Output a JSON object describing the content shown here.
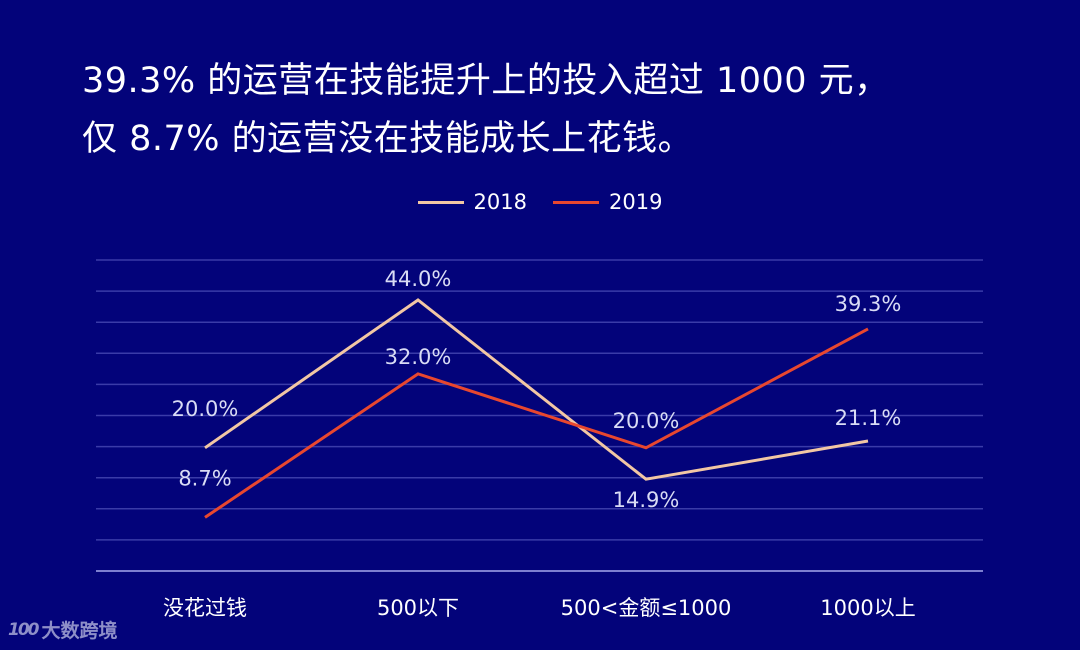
{
  "title": {
    "line1": "39.3% 的运营在技能提升上的投入超过 1000 元，",
    "line2": "仅 8.7% 的运营没在技能成长上花钱。"
  },
  "legend": [
    {
      "label": "2018",
      "color": "#f2c7a4"
    },
    {
      "label": "2019",
      "color": "#e8472f"
    }
  ],
  "watermark": {
    "logo": "100",
    "text": "大数跨境"
  },
  "colors": {
    "background": "#03037a",
    "gridline": "#3a3ba8",
    "axis": "#7d7fd0",
    "data_label": "#d9dcf5"
  },
  "chart_data": {
    "type": "line",
    "title": "39.3% 的运营在技能提升上的投入超过 1000 元，仅 8.7% 的运营没在技能成长上花钱。",
    "categories": [
      "没花过钱",
      "500以下",
      "500<金额≤1000",
      "1000以上"
    ],
    "series": [
      {
        "name": "2018",
        "values": [
          20.0,
          44.0,
          14.9,
          21.1
        ],
        "labels": [
          "20.0%",
          "44.0%",
          "14.9%",
          "21.1%"
        ],
        "color": "#f2c7a4"
      },
      {
        "name": "2019",
        "values": [
          8.7,
          32.0,
          20.0,
          39.3
        ],
        "labels": [
          "8.7%",
          "32.0%",
          "20.0%",
          "39.3%"
        ],
        "color": "#e8472f"
      }
    ],
    "xlabel": "",
    "ylabel": "",
    "ylim": [
      0,
      50
    ],
    "grid": true,
    "legend_position": "top"
  }
}
